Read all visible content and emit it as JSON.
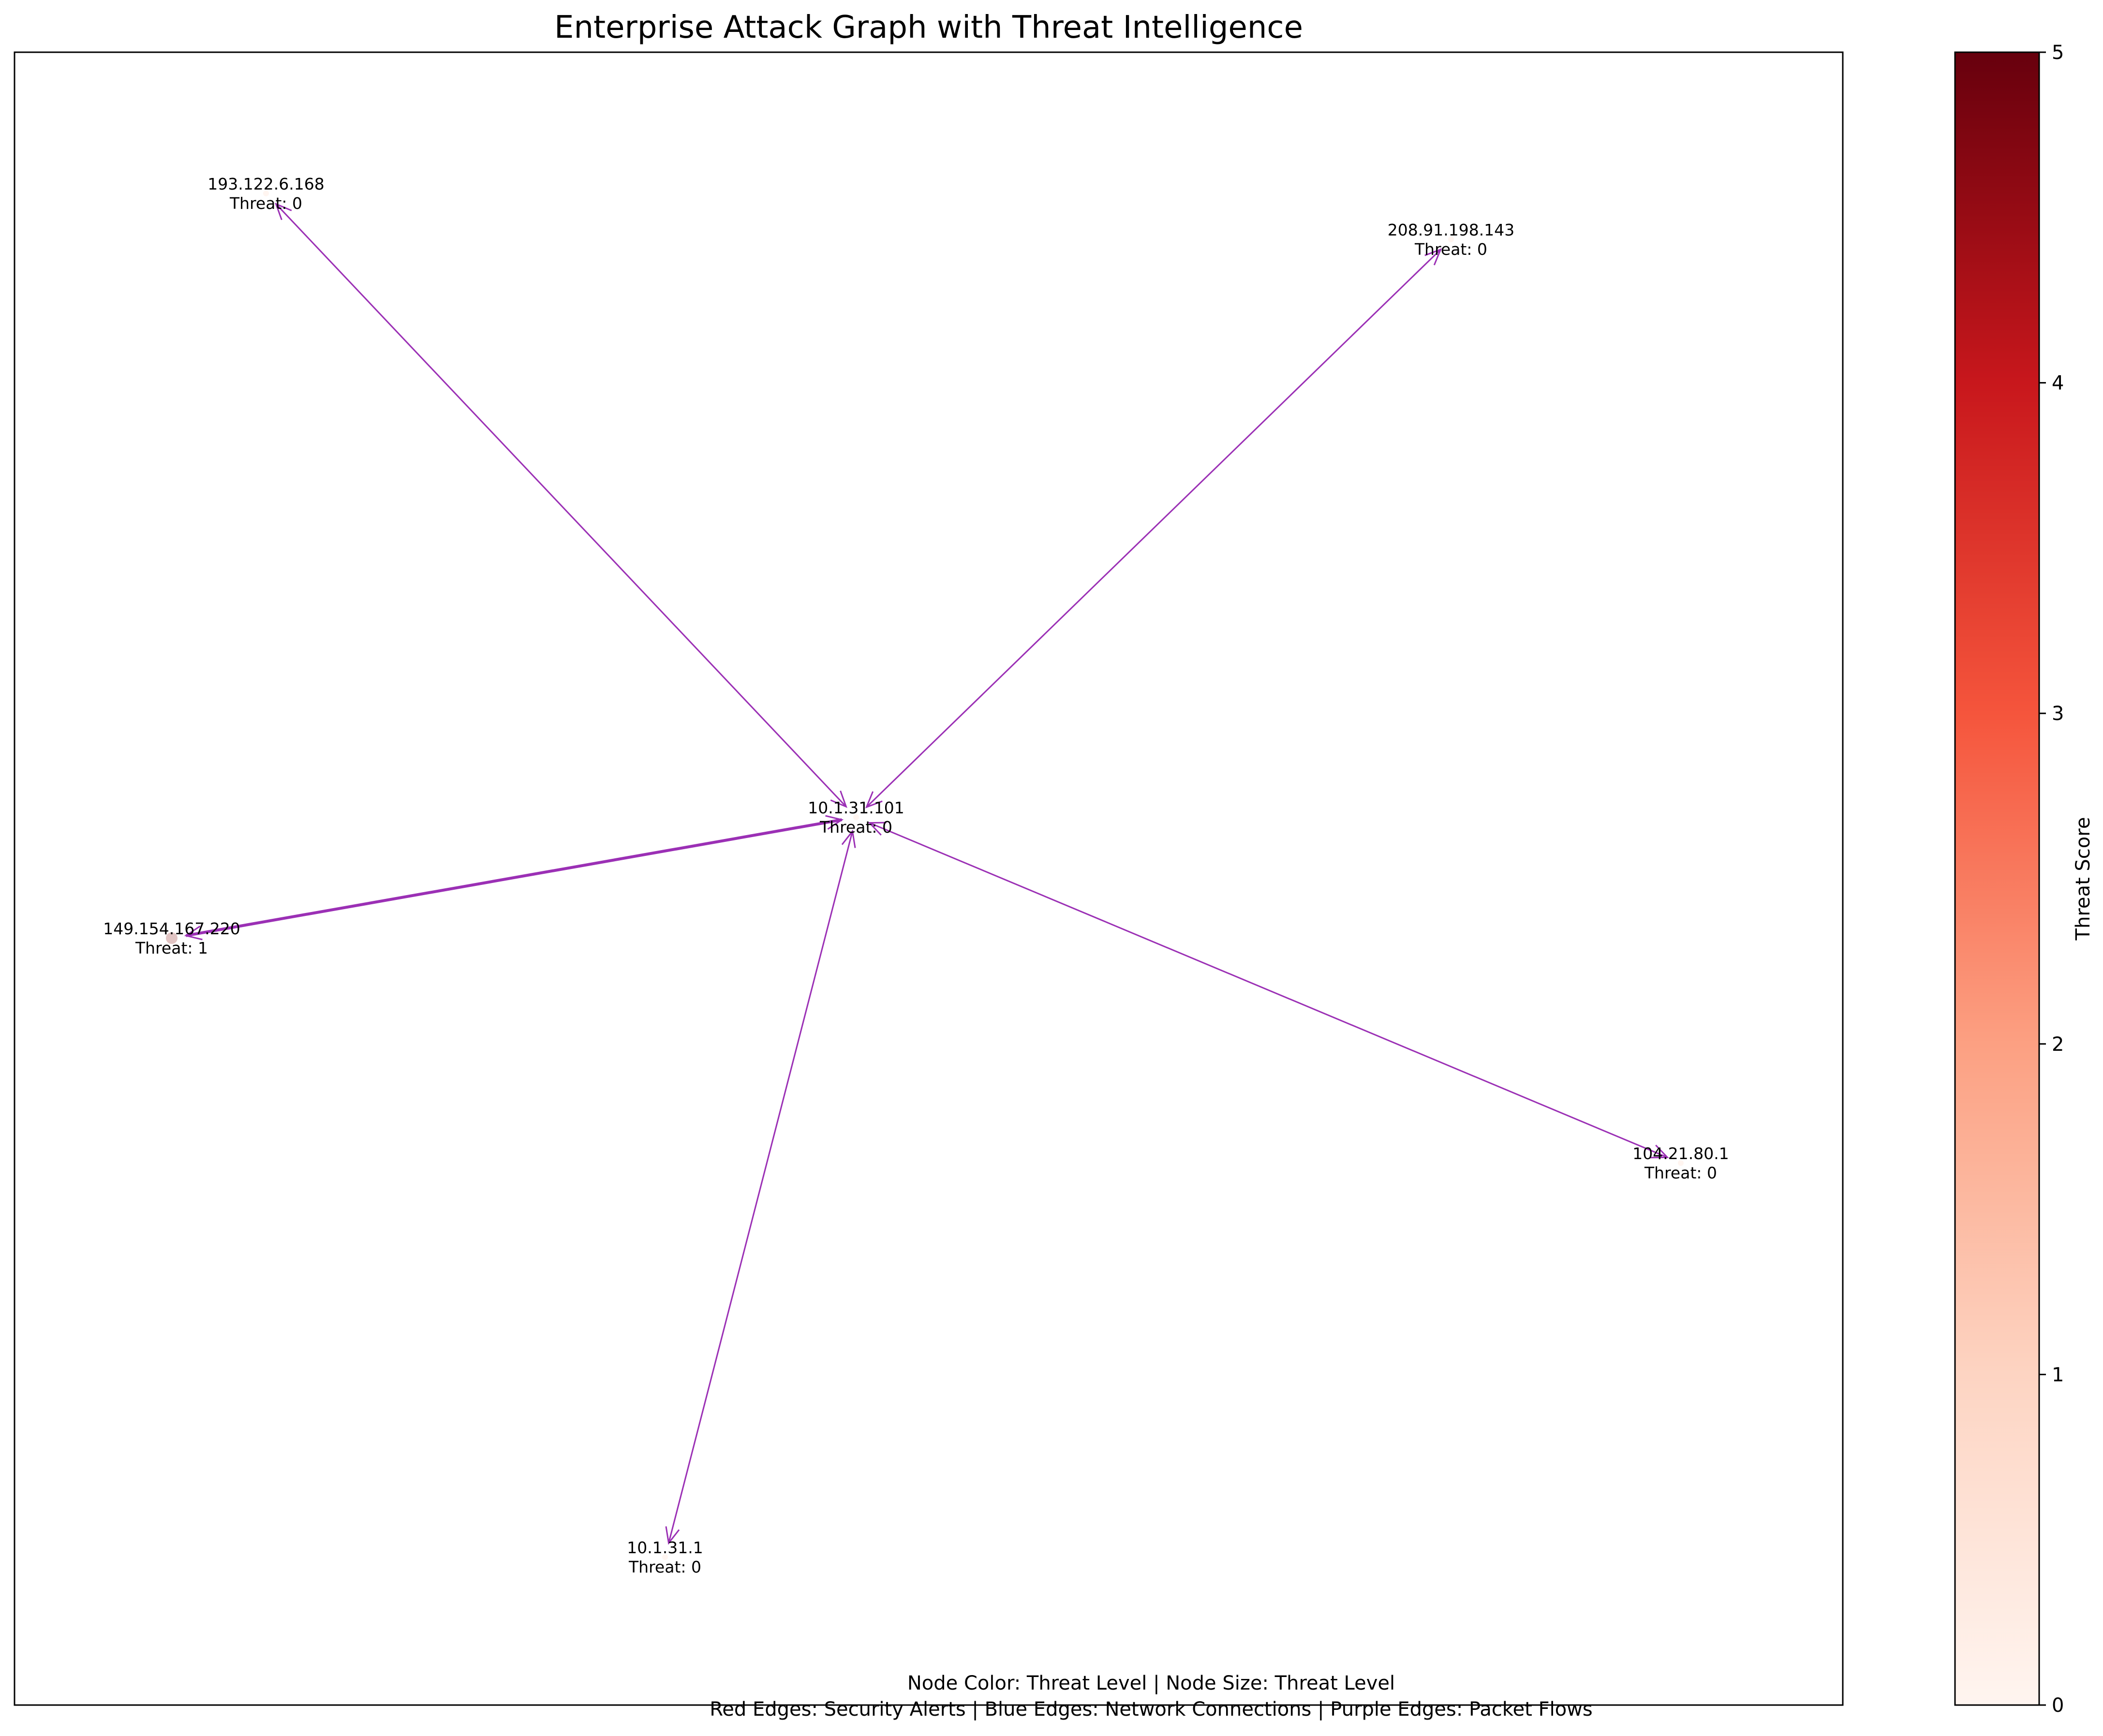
{
  "title": "Enterprise Attack Graph with Threat Intelligence",
  "captions": {
    "line1": "Node Color: Threat Level | Node Size: Threat Level",
    "line2": "Red Edges: Security Alerts | Blue Edges: Network Connections | Purple Edges: Packet Flows"
  },
  "colors": {
    "packet_flow_edge": "#9b30b5",
    "colormap_low": "#fff5f0",
    "colormap_high": "#67000d"
  },
  "nodes": [
    {
      "id": "10.1.31.101",
      "name": "10.1.31.101",
      "threat_text": "Threat: 0",
      "threat": 0
    },
    {
      "id": "193.122.6.168",
      "name": "193.122.6.168",
      "threat_text": "Threat: 0",
      "threat": 0
    },
    {
      "id": "208.91.198.143",
      "name": "208.91.198.143",
      "threat_text": "Threat: 0",
      "threat": 0
    },
    {
      "id": "149.154.167.220",
      "name": "149.154.167.220",
      "threat_text": "Threat: 1",
      "threat": 1
    },
    {
      "id": "104.21.80.1",
      "name": "104.21.80.1",
      "threat_text": "Threat: 0",
      "threat": 0
    },
    {
      "id": "10.1.31.1",
      "name": "10.1.31.1",
      "threat_text": "Threat: 0",
      "threat": 0
    }
  ],
  "edges": [
    {
      "source": "10.1.31.101",
      "target": "193.122.6.168",
      "type": "packet_flow",
      "bidirectional": true,
      "weight": 1
    },
    {
      "source": "10.1.31.101",
      "target": "208.91.198.143",
      "type": "packet_flow",
      "bidirectional": true,
      "weight": 1
    },
    {
      "source": "10.1.31.101",
      "target": "149.154.167.220",
      "type": "packet_flow",
      "bidirectional": true,
      "weight": 2
    },
    {
      "source": "10.1.31.101",
      "target": "104.21.80.1",
      "type": "packet_flow",
      "bidirectional": true,
      "weight": 1
    },
    {
      "source": "10.1.31.101",
      "target": "10.1.31.1",
      "type": "packet_flow",
      "bidirectional": true,
      "weight": 1
    }
  ],
  "colorbar": {
    "label": "Threat Score",
    "min": 0,
    "max": 5,
    "ticks": [
      "0",
      "1",
      "2",
      "3",
      "4",
      "5"
    ]
  }
}
